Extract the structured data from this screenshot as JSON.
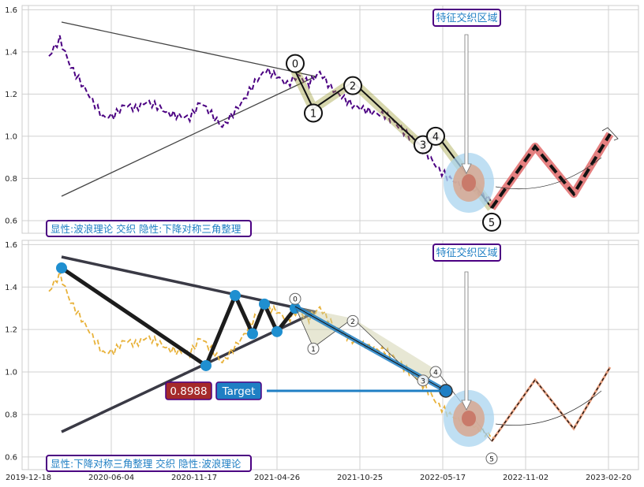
{
  "chart_data": [
    {
      "type": "line",
      "ylim": [
        0.54,
        1.62
      ],
      "yticks": [
        0.6,
        0.8,
        1.0,
        1.2,
        1.4,
        1.6
      ],
      "series": [
        {
          "color": "#4b0082",
          "style": "dashed",
          "values": [
            1.38,
            1.45,
            1.32,
            1.25,
            1.18,
            1.1,
            1.1,
            1.14,
            1.12,
            1.16,
            1.15,
            1.12,
            1.1,
            1.08,
            1.15,
            1.1,
            1.05,
            1.12,
            1.18,
            1.25,
            1.3,
            1.28,
            1.25,
            1.3,
            1.26,
            1.3,
            1.22,
            1.18,
            1.15,
            1.14,
            1.12,
            1.1,
            1.05,
            1.0,
            0.97,
            0.92,
            0.85,
            0.8,
            0.76,
            0.74,
            0.72,
            0.7
          ]
        }
      ],
      "wave_points": [
        {
          "label": "0",
          "y": 1.3
        },
        {
          "label": "1",
          "y": 1.11
        },
        {
          "label": "2",
          "y": 1.24
        },
        {
          "label": "3",
          "y": 0.96
        },
        {
          "label": "4",
          "y": 1.0
        },
        {
          "label": "5",
          "y": 0.63
        }
      ],
      "projection": [
        0.66,
        0.95,
        0.72,
        1.01
      ],
      "annotation": "特征交织区域",
      "legend_text": "显性:波浪理论 交织 隐性:下降对称三角整理"
    },
    {
      "type": "line",
      "ylim": [
        0.54,
        1.62
      ],
      "yticks": [
        0.6,
        0.8,
        1.0,
        1.2,
        1.4,
        1.6
      ],
      "xticks": [
        "2019-12-18",
        "2020-06-04",
        "2020-11-17",
        "2021-04-26",
        "2021-10-25",
        "2022-05-17",
        "2022-11-02",
        "2023-02-20"
      ],
      "series": [
        {
          "color": "#e8b23a",
          "style": "dashed",
          "values": [
            1.38,
            1.45,
            1.32,
            1.25,
            1.18,
            1.1,
            1.1,
            1.14,
            1.12,
            1.16,
            1.15,
            1.12,
            1.1,
            1.08,
            1.15,
            1.1,
            1.05,
            1.12,
            1.18,
            1.25,
            1.3,
            1.28,
            1.25,
            1.3,
            1.26,
            1.3,
            1.22,
            1.18,
            1.15,
            1.14,
            1.12,
            1.1,
            1.05,
            1.0,
            0.97,
            0.92,
            0.85,
            0.8,
            0.76,
            0.74,
            0.72,
            0.7
          ]
        }
      ],
      "pattern_points": [
        1.49,
        1.03,
        1.36,
        1.18,
        1.32,
        1.19,
        1.3
      ],
      "wave_points": [
        {
          "label": "0",
          "y": 1.3
        },
        {
          "label": "1",
          "y": 1.11
        },
        {
          "label": "2",
          "y": 1.24
        },
        {
          "label": "3",
          "y": 0.96
        },
        {
          "label": "4",
          "y": 1.0
        },
        {
          "label": "5",
          "y": 0.63
        }
      ],
      "target_value": "0.8988",
      "target_label": "Target",
      "annotation": "特征交织区域",
      "legend_text": "显性:下降对称三角整理 交织 隐性:波浪理论"
    }
  ]
}
